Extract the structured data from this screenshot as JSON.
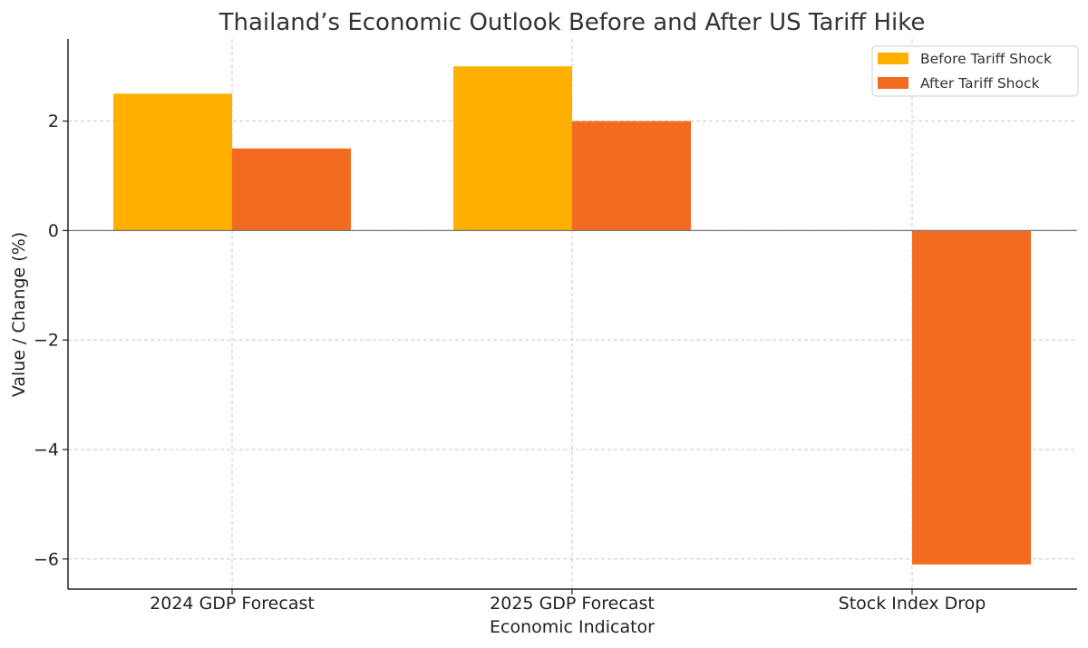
{
  "chart_data": {
    "type": "bar",
    "title": "Thailand’s Economic Outlook Before and After US Tariff Hike",
    "xlabel": "Economic Indicator",
    "ylabel": "Value / Change (%)",
    "categories": [
      "2024 GDP Forecast",
      "2025 GDP Forecast",
      "Stock Index Drop"
    ],
    "series": [
      {
        "name": "Before Tariff Shock",
        "color": "#FFB000",
        "values": [
          2.5,
          3.0,
          null
        ]
      },
      {
        "name": "After Tariff Shock",
        "color": "#F26B21",
        "values": [
          1.5,
          2.0,
          -6.1
        ]
      }
    ],
    "ylim": [
      -6.55,
      3.5
    ],
    "yticks": [
      2,
      0,
      -2,
      -4,
      -6
    ],
    "ytick_labels": [
      "2",
      "0",
      "−2",
      "−4",
      "−6"
    ],
    "grid": true,
    "legend_position": "top-right"
  }
}
